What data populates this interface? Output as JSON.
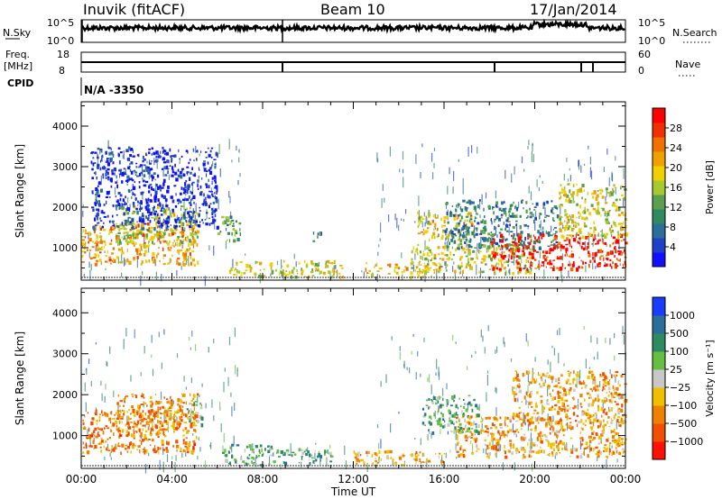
{
  "header": {
    "station": "Inuvik (fitACF)",
    "beam": "Beam 10",
    "date": "17/Jan/2014"
  },
  "top_panels": {
    "nsky_label": "N.Sky",
    "nsky_ticks": [
      "10^5",
      "10^0"
    ],
    "nsearch_label": "N.Search",
    "nsearch_ticks": [
      "10^5",
      "10^0"
    ],
    "freq_label_1": "Freq.",
    "freq_label_2": "[MHz]",
    "freq_ticks": [
      "18",
      "8"
    ],
    "nave_label": "Nave",
    "nave_ticks": [
      "60",
      "0"
    ],
    "cpid_label": "CPID",
    "cpid_value": "N/A -3350"
  },
  "chart_data": [
    {
      "type": "heatmap",
      "name": "power",
      "ylabel": "Slant Range [km]",
      "yticks": [
        1000,
        2000,
        3000,
        4000
      ],
      "ylim": [
        200,
        4600
      ],
      "xticks": [
        "00:00",
        "04:00",
        "08:00",
        "12:00",
        "16:00",
        "20:00",
        "00:00"
      ],
      "xlim_hours": [
        0,
        24
      ],
      "colorbar_label": "Power [dB]",
      "colorbar_ticks": [
        "4",
        "8",
        "12",
        "16",
        "20",
        "24",
        "28"
      ],
      "colorbar_colors": [
        "#1010ff",
        "#2040c8",
        "#2c6e9a",
        "#2e8a60",
        "#5aa04e",
        "#a8c830",
        "#f0d000",
        "#f0a000",
        "#f07000",
        "#f03000",
        "#ff0000"
      ],
      "bands": [
        {
          "t0": 0.0,
          "t1": 5.1,
          "r0": 600,
          "r1": 1650,
          "level": 0.7
        },
        {
          "t0": 1.5,
          "t1": 5.1,
          "r0": 1100,
          "r1": 2050,
          "level": 0.5
        },
        {
          "t0": 0.4,
          "t1": 6.0,
          "r0": 1500,
          "r1": 3500,
          "level": 0.05
        },
        {
          "t0": 6.0,
          "t1": 7.0,
          "r0": 1200,
          "r1": 1800,
          "level": 0.4
        },
        {
          "t0": 6.5,
          "t1": 11.5,
          "r0": 300,
          "r1": 700,
          "level": 0.55
        },
        {
          "t0": 10.2,
          "t1": 10.6,
          "r0": 1150,
          "r1": 1400,
          "level": 0.3
        },
        {
          "t0": 12.5,
          "t1": 15.8,
          "r0": 300,
          "r1": 650,
          "level": 0.65
        },
        {
          "t0": 14.8,
          "t1": 17.2,
          "r0": 1200,
          "r1": 1900,
          "level": 0.6
        },
        {
          "t0": 14.5,
          "t1": 20.0,
          "r0": 400,
          "r1": 1100,
          "level": 0.55
        },
        {
          "t0": 16.0,
          "t1": 21.0,
          "r0": 1000,
          "r1": 2200,
          "level": 0.25
        },
        {
          "t0": 18.0,
          "t1": 24.0,
          "r0": 500,
          "r1": 1350,
          "level": 0.95
        },
        {
          "t0": 21.0,
          "t1": 24.0,
          "r0": 1300,
          "r1": 2600,
          "level": 0.55
        }
      ]
    },
    {
      "type": "heatmap",
      "name": "velocity",
      "ylabel": "Slant Range [km]",
      "yticks": [
        1000,
        2000,
        3000,
        4000
      ],
      "ylim": [
        200,
        4600
      ],
      "xticks": [
        "00:00",
        "04:00",
        "08:00",
        "12:00",
        "16:00",
        "20:00",
        "00:00"
      ],
      "xlim_hours": [
        0,
        24
      ],
      "xlabel": "Time UT",
      "colorbar_label": "Velocity [m s⁻¹]",
      "colorbar_ticks": [
        "1000",
        "500",
        "100",
        "25",
        "−25",
        "−100",
        "−500",
        "−1000"
      ],
      "colorbar_colors": [
        "#1a3cff",
        "#2c6e9a",
        "#2e8a60",
        "#66c040",
        "#c8c8c8",
        "#f0c000",
        "#f08000",
        "#f05000",
        "#ff1000"
      ],
      "bands": [
        {
          "t0": 0.0,
          "t1": 5.1,
          "r0": 600,
          "r1": 1650,
          "level": 0.78
        },
        {
          "t0": 1.5,
          "t1": 5.1,
          "r0": 1100,
          "r1": 2050,
          "level": 0.75
        },
        {
          "t0": 4.6,
          "t1": 5.3,
          "r0": 1300,
          "r1": 1900,
          "level": 0.35
        },
        {
          "t0": 6.2,
          "t1": 8.5,
          "r0": 300,
          "r1": 800,
          "level": 0.35
        },
        {
          "t0": 8.6,
          "t1": 11.0,
          "r0": 350,
          "r1": 700,
          "level": 0.3
        },
        {
          "t0": 12.0,
          "t1": 16.0,
          "r0": 300,
          "r1": 650,
          "level": 0.65
        },
        {
          "t0": 15.0,
          "t1": 17.5,
          "r0": 1100,
          "r1": 2000,
          "level": 0.3
        },
        {
          "t0": 16.5,
          "t1": 24.0,
          "r0": 500,
          "r1": 1500,
          "level": 0.7
        },
        {
          "t0": 19.0,
          "t1": 24.0,
          "r0": 1300,
          "r1": 2600,
          "level": 0.7
        }
      ]
    }
  ]
}
